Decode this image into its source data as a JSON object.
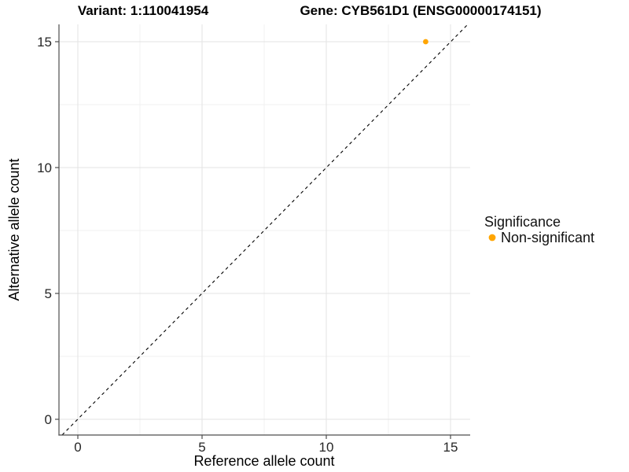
{
  "titles": {
    "variant": "Variant: 1:110041954",
    "gene": "Gene: CYB561D1 (ENSG00000174151)"
  },
  "chart_data": {
    "type": "scatter",
    "title_left": "Variant: 1:110041954",
    "title_right": "Gene: CYB561D1 (ENSG00000174151)",
    "xlabel": "Reference allele count",
    "ylabel": "Alternative allele count",
    "xlim": [
      -0.8,
      15.8
    ],
    "ylim": [
      -0.65,
      16.3
    ],
    "xticks": [
      0,
      5,
      10,
      15
    ],
    "yticks": [
      0,
      5,
      10,
      15
    ],
    "xtick_labels": [
      "0",
      "5",
      "10",
      "15"
    ],
    "ytick_labels": [
      "0",
      "5",
      "10",
      "15"
    ],
    "grid": "major and minor gridlines, light gray on white panel",
    "reference_line": {
      "type": "identity",
      "equation": "y = x",
      "style": "dashed",
      "color": "#000000"
    },
    "points": [
      {
        "x": 14,
        "y": 15,
        "series": "Non-significant",
        "color": "#FFA500"
      }
    ],
    "legend": {
      "title": "Significance",
      "position": "right",
      "items": [
        {
          "label": "Non-significant",
          "color": "#FFA500",
          "marker": "circle"
        }
      ]
    }
  },
  "colors": {
    "point": "#FFA500",
    "axis_line": "#4D4D4D",
    "tick_label": "#262626",
    "grid_major": "#E3E3E3",
    "grid_minor": "#F0F0F0",
    "background": "#FFFFFF"
  }
}
